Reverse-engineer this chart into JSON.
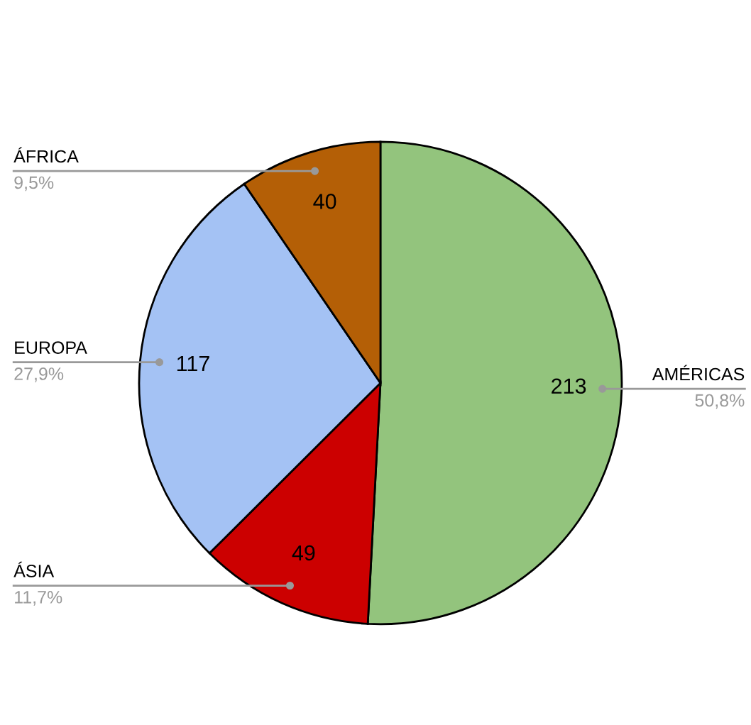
{
  "chart_data": {
    "type": "pie",
    "categories": [
      "AMÉRICAS",
      "ÁSIA",
      "EUROPA",
      "ÁFRICA"
    ],
    "values": [
      213,
      49,
      117,
      40
    ],
    "colors": [
      "#93c47d",
      "#cc0000",
      "#a4c2f4",
      "#b45f06"
    ],
    "data_labels": true,
    "annotations": [
      "50,8%",
      "11,7%",
      "27,9%",
      "9,5%"
    ],
    "legend": false
  }
}
